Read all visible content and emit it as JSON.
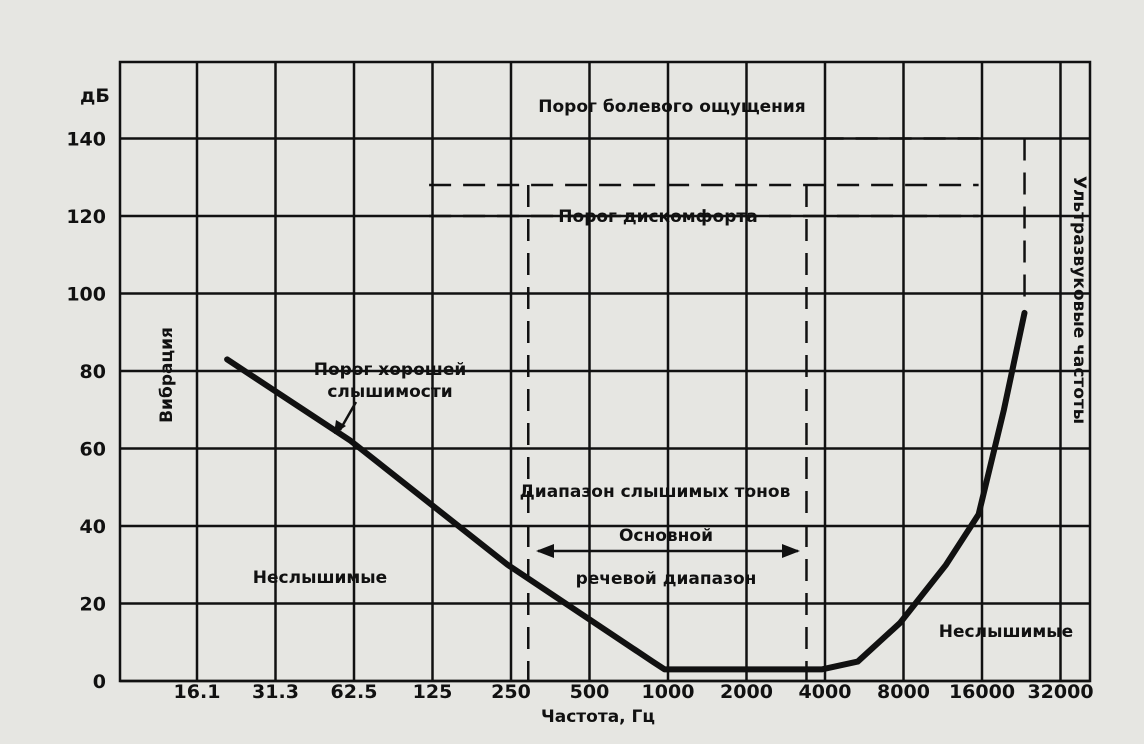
{
  "chart_data": {
    "type": "line",
    "title": "",
    "xlabel": "Частота, Гц",
    "ylabel": "дБ",
    "x_scale": "log2",
    "xlim": [
      16.1,
      32000
    ],
    "ylim": [
      0,
      140
    ],
    "grid": true,
    "x_ticks": [
      "16.1",
      "31.3",
      "62.5",
      "125",
      "250",
      "500",
      "1000",
      "2000",
      "4000",
      "8000",
      "16000",
      "32000"
    ],
    "y_ticks": [
      "0",
      "20",
      "40",
      "60",
      "80",
      "100",
      "120",
      "140"
    ],
    "series": [
      {
        "name": "Порог хорошей слышимости",
        "points": [
          {
            "x": 21,
            "y": 83
          },
          {
            "x": 62.5,
            "y": 62
          },
          {
            "x": 250,
            "y": 30
          },
          {
            "x": 900,
            "y": 5
          },
          {
            "x": 1000,
            "y": 3
          },
          {
            "x": 4000,
            "y": 3
          },
          {
            "x": 5500,
            "y": 5
          },
          {
            "x": 8000,
            "y": 15
          },
          {
            "x": 12000,
            "y": 30
          },
          {
            "x": 16000,
            "y": 43
          },
          {
            "x": 20000,
            "y": 70
          },
          {
            "x": 24000,
            "y": 95
          }
        ]
      }
    ],
    "dashed_lines": [
      {
        "name": "Порог болевого ощущения",
        "y": 140,
        "x_from": 4000,
        "x_to": 16000
      },
      {
        "name": "Порог болевого ощущения (выше)",
        "y": 128,
        "x_from": 125,
        "x_to": 16000
      },
      {
        "name": "Порог дискомфорта",
        "y": 120,
        "x_from": 125,
        "x_to": 16000
      }
    ],
    "annotations": {
      "pain_threshold": "Порог болевого ощущения",
      "discomfort_threshold": "Порог дискомфорта",
      "good_hearing_line1": "Порог хорошей",
      "good_hearing_line2": "слышимости",
      "audible_range": "Диапазон слышимых тонов",
      "main_speech_line1": "Основной",
      "main_speech_line2": "речевой диапазон",
      "inaudible_left": "Неслышимые",
      "inaudible_right": "Неслышимые",
      "vibration": "Вибрация",
      "ultrasound": "Ультразвуковые частоты"
    },
    "speech_range": [
      300,
      3500
    ],
    "colors": {
      "background": "#e6e6e2",
      "ink": "#111111"
    }
  }
}
